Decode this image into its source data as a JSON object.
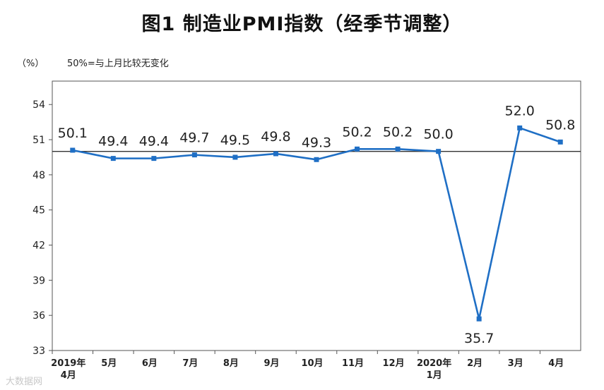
{
  "chart_data": {
    "type": "line",
    "title": "图1  制造业PMI指数（经季节调整）",
    "ylabel": "（%）",
    "reference_note": "50%=与上月比较无变化",
    "reference_line": 50,
    "ylim": [
      33,
      56
    ],
    "yticks": [
      33,
      36,
      39,
      42,
      45,
      48,
      51,
      54
    ],
    "categories": [
      [
        "2019年",
        "4月"
      ],
      [
        "5月"
      ],
      [
        "6月"
      ],
      [
        "7月"
      ],
      [
        "8月"
      ],
      [
        "9月"
      ],
      [
        "10月"
      ],
      [
        "11月"
      ],
      [
        "12月"
      ],
      [
        "2020年",
        "1月"
      ],
      [
        "2月"
      ],
      [
        "3月"
      ],
      [
        "4月"
      ]
    ],
    "values": [
      50.1,
      49.4,
      49.4,
      49.7,
      49.5,
      49.8,
      49.3,
      50.2,
      50.2,
      50.0,
      35.7,
      52.0,
      50.8
    ],
    "data_labels": [
      "50.1",
      "49.4",
      "49.4",
      "49.7",
      "49.5",
      "49.8",
      "49.3",
      "50.2",
      "50.2",
      "50.0",
      "35.7",
      "52.0",
      "50.8"
    ],
    "grid": false,
    "line_color": "#1f6fc5"
  },
  "watermark": "大数据网"
}
